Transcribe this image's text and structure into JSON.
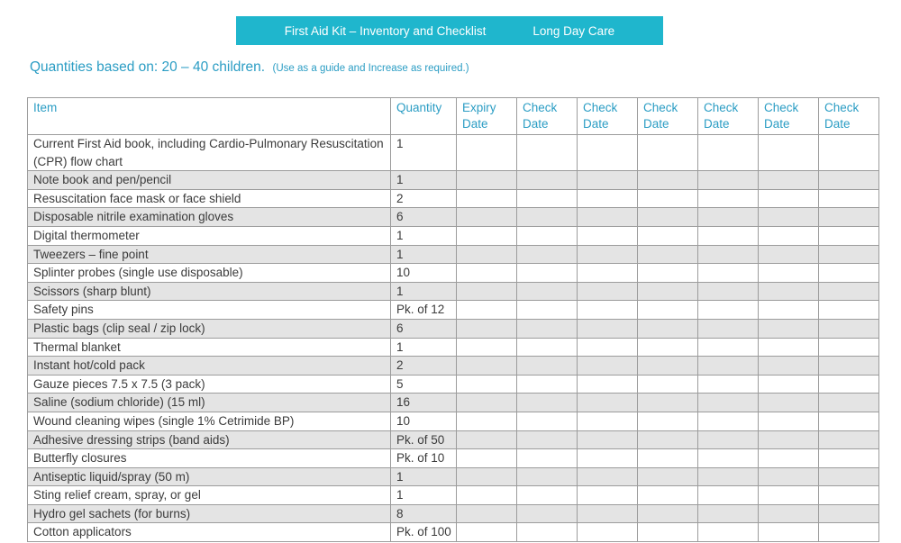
{
  "banner": {
    "title": "First Aid Kit – Inventory and Checklist",
    "org": "Long Day Care"
  },
  "subtitle": {
    "main": "Quantities based on: 20 – 40 children.",
    "note": "(Use as a guide and Increase as required.)"
  },
  "table": {
    "headers": {
      "item": "Item",
      "quantity": "Quantity",
      "expiry": "Expiry Date",
      "check": "Check Date",
      "check_column_count": 6
    },
    "items": [
      {
        "name": "Current First Aid book, including Cardio-Pulmonary Resuscitation (CPR) flow chart",
        "quantity": "1"
      },
      {
        "name": "Note book and pen/pencil",
        "quantity": "1"
      },
      {
        "name": "Resuscitation face mask or face shield",
        "quantity": "2"
      },
      {
        "name": "Disposable nitrile examination gloves",
        "quantity": "6"
      },
      {
        "name": "Digital thermometer",
        "quantity": "1"
      },
      {
        "name": "Tweezers – fine point",
        "quantity": "1"
      },
      {
        "name": "Splinter probes (single use disposable)",
        "quantity": "10"
      },
      {
        "name": "Scissors (sharp blunt)",
        "quantity": "1"
      },
      {
        "name": "Safety pins",
        "quantity": "Pk. of 12"
      },
      {
        "name": "Plastic bags (clip seal / zip lock)",
        "quantity": "6"
      },
      {
        "name": "Thermal blanket",
        "quantity": "1"
      },
      {
        "name": "Instant hot/cold pack",
        "quantity": "2"
      },
      {
        "name": "Gauze pieces 7.5 x 7.5 (3 pack)",
        "quantity": "5"
      },
      {
        "name": "Saline (sodium chloride) (15 ml)",
        "quantity": "16"
      },
      {
        "name": "Wound cleaning wipes (single 1% Cetrimide BP)",
        "quantity": "10"
      },
      {
        "name": "Adhesive dressing strips (band aids)",
        "quantity": "Pk. of 50"
      },
      {
        "name": "Butterfly closures",
        "quantity": "Pk. of 10"
      },
      {
        "name": "Antiseptic liquid/spray (50 m)",
        "quantity": "1"
      },
      {
        "name": "Sting relief cream, spray, or gel",
        "quantity": "1"
      },
      {
        "name": "Hydro gel sachets (for burns)",
        "quantity": "8"
      },
      {
        "name": "Cotton applicators",
        "quantity": "Pk. of 100"
      }
    ]
  },
  "colors": {
    "accent_teal": "#1fb6cd",
    "teal_text": "#2b9dc4",
    "body_text": "#3b3b3b",
    "row_alt": "#e4e4e4",
    "border": "#9c9c9c"
  }
}
